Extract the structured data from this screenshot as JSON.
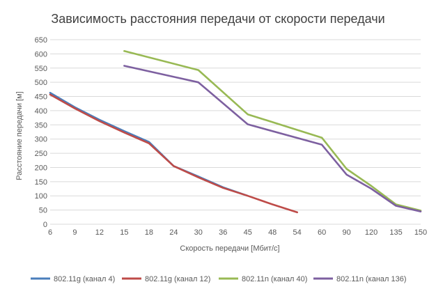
{
  "chart_data": {
    "type": "line",
    "title": "Зависимость расстояния передачи от скорости передачи",
    "xlabel": "Скорость передачи [Мбит/с]",
    "ylabel": "Расстояние передачи [м]",
    "ylim": [
      0,
      650
    ],
    "y_ticks": [
      0,
      50,
      100,
      150,
      200,
      250,
      300,
      350,
      400,
      450,
      500,
      550,
      600,
      650
    ],
    "categories": [
      "6",
      "9",
      "12",
      "15",
      "18",
      "24",
      "30",
      "36",
      "45",
      "48",
      "54",
      "60",
      "90",
      "120",
      "135",
      "150"
    ],
    "grid": true,
    "legend_position": "bottom",
    "series": [
      {
        "name": "802.11g (канал 4)",
        "color": "#4a7ebb",
        "values": [
          463,
          412,
          368,
          328,
          290,
          205,
          168,
          130,
          100,
          null,
          null,
          null,
          null,
          null,
          null,
          null
        ]
      },
      {
        "name": "802.11g (канал 12)",
        "color": "#be4b48",
        "values": [
          457,
          408,
          363,
          323,
          285,
          205,
          165,
          128,
          100,
          70,
          42,
          null,
          null,
          null,
          null,
          null
        ]
      },
      {
        "name": "802.11n (канал 40)",
        "color": "#98b954",
        "values": [
          null,
          null,
          null,
          610,
          null,
          null,
          543,
          null,
          387,
          null,
          null,
          305,
          195,
          135,
          70,
          48
        ]
      },
      {
        "name": "802.11n (канал 136)",
        "color": "#7d60a0",
        "values": [
          null,
          null,
          null,
          558,
          null,
          null,
          500,
          null,
          352,
          null,
          null,
          280,
          175,
          125,
          65,
          45
        ]
      }
    ]
  }
}
